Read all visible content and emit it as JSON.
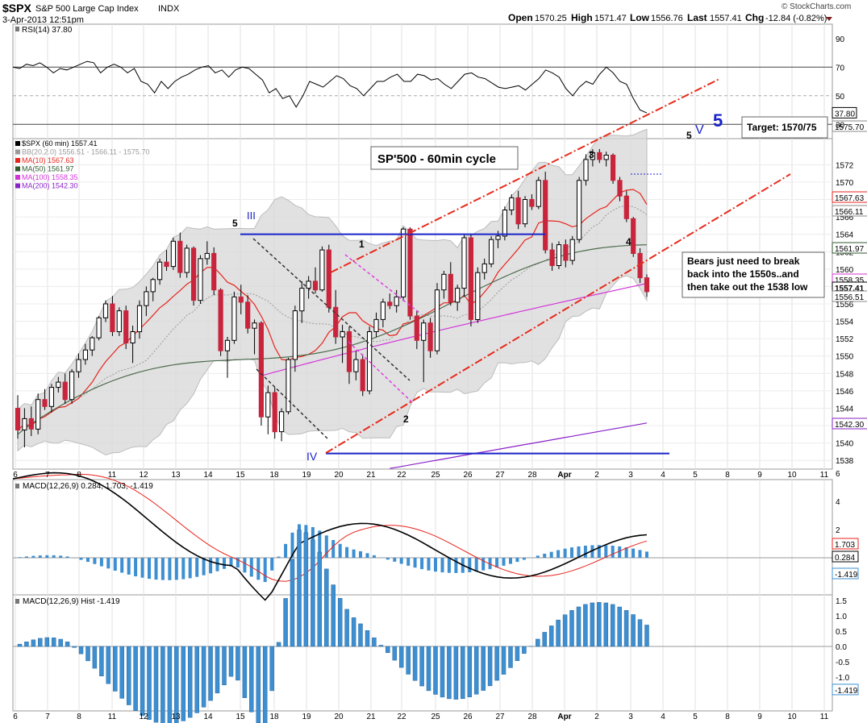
{
  "header": {
    "symbol": "$SPX",
    "name": "S&P 500 Large Cap Index",
    "exchange": "INDX",
    "datetime": "3-Apr-2013 12:51pm",
    "quote": {
      "open_label": "Open",
      "open": "1570.25",
      "high_label": "High",
      "high": "1571.47",
      "low_label": "Low",
      "low": "1556.76",
      "last_label": "Last",
      "last": "1557.41",
      "chg_label": "Chg",
      "chg": "-12.84 (-0.82%)"
    },
    "watermark": "© StockCharts.com"
  },
  "colors": {
    "up": "#ffffff",
    "down": "#c8243c",
    "candle_outline": "#000000",
    "bb": "#bcbcbc",
    "ma10": "#e8231c",
    "ma50": "#4d6b4d",
    "ma100": "#d433d9",
    "ma200": "#8a22c9",
    "channel": "#e82a1c",
    "annotation_blue": "#1a23c8",
    "macd_hist": "#3d8fd1",
    "macd_signal": "#e8231c"
  },
  "rsi_panel": {
    "label": "RSI(14) 37.80",
    "ticks": [
      "90",
      "70",
      "50",
      "30"
    ],
    "current_tag": "37.80",
    "overbought": 70,
    "oversold": 30,
    "values": [
      70,
      69,
      72,
      71,
      73,
      70,
      66,
      69,
      68,
      70,
      72,
      74,
      73,
      66,
      70,
      72,
      70,
      66,
      69,
      60,
      58,
      52,
      60,
      55,
      60,
      63,
      65,
      68,
      70,
      71,
      66,
      68,
      63,
      68,
      70,
      69,
      65,
      61,
      52,
      55,
      48,
      50,
      42,
      50,
      60,
      58,
      56,
      60,
      64,
      62,
      57,
      55,
      50,
      55,
      60,
      60,
      63,
      65,
      60,
      60,
      65,
      64,
      61,
      62,
      58,
      55,
      60,
      65,
      66,
      63,
      62,
      59,
      56,
      55,
      56,
      57,
      54,
      58,
      62,
      68,
      66,
      63,
      55,
      50,
      56,
      60,
      58,
      65,
      70,
      66,
      60,
      58,
      48,
      40,
      38
    ]
  },
  "price_panel": {
    "legend": [
      {
        "label": "$SPX (60 min) 1557.41",
        "color": "#000000"
      },
      {
        "label": "BB(20,2.0) 1556.51 - 1566.11 - 1575.70",
        "color": "#9a9a9a"
      },
      {
        "label": "MA(10) 1567.63",
        "color": "#e8231c"
      },
      {
        "label": "MA(50) 1561.97",
        "color": "#2e5a2e"
      },
      {
        "label": "MA(100) 1558.35",
        "color": "#d433d9"
      },
      {
        "label": "MA(200) 1542.30",
        "color": "#8a22c9"
      }
    ],
    "y_ticks": [
      "1572",
      "1570",
      "1568",
      "1566",
      "1564",
      "1562",
      "1560",
      "1558",
      "1556",
      "1554",
      "1552",
      "1550",
      "1548",
      "1546",
      "1544",
      "1542",
      "1540",
      "1538"
    ],
    "right_tags": [
      "1575.70",
      "1567.63",
      "1566.11",
      "1561.97",
      "1558.35",
      "1557.41",
      "1556.51",
      "1542.30"
    ],
    "x_labels": [
      "6",
      "7",
      "8",
      "11",
      "12",
      "13",
      "14",
      "15",
      "18",
      "19",
      "20",
      "21",
      "22",
      "25",
      "26",
      "27",
      "28",
      "Apr",
      "2",
      "3",
      "4",
      "5",
      "8",
      "9",
      "10",
      "11"
    ]
  },
  "annotations": {
    "title": "SP'500 - 60min cycle",
    "target": "Target: 1570/75",
    "note": "Bears just need to break back into the 1550s..and then take out the 1538 low",
    "wave_labels": [
      "5",
      "III",
      "1",
      "IV",
      "2",
      "3",
      "4",
      "5",
      "V",
      "5"
    ]
  },
  "macd_panel": {
    "label": "MACD(12,26,9) 0.284, 1.703, -1.419",
    "ticks": [
      "6",
      "4",
      "2",
      "0"
    ],
    "tags": [
      "1.703",
      "0.284",
      "-1.419"
    ]
  },
  "hist_panel": {
    "label": "MACD(12,26,9) Hist -1.419",
    "ticks": [
      "1.5",
      "1.0",
      "0.5",
      "0.0",
      "-0.5",
      "-1.0"
    ],
    "tag": "-1.419"
  },
  "chart_data": {
    "type": "candlestick",
    "title": "$SPX (60 min)",
    "interval": "60 min",
    "ylim": [
      1537,
      1575
    ],
    "x_ticks": [
      "6",
      "7",
      "8",
      "11",
      "12",
      "13",
      "14",
      "15",
      "18",
      "19",
      "20",
      "21",
      "22",
      "25",
      "26",
      "27",
      "28",
      "Apr",
      "2",
      "3",
      "4",
      "5",
      "8",
      "9",
      "10",
      "11"
    ],
    "candles": [
      [
        1544,
        1545.5,
        1540.5,
        1541.5
      ],
      [
        1541.5,
        1544,
        1539.5,
        1542.8
      ],
      [
        1542.8,
        1544.2,
        1540.8,
        1541.6
      ],
      [
        1541.6,
        1545.7,
        1541,
        1545
      ],
      [
        1545,
        1546.2,
        1543.8,
        1544.2
      ],
      [
        1544.2,
        1546.8,
        1543.5,
        1546.4
      ],
      [
        1546.4,
        1547.6,
        1545.8,
        1547
      ],
      [
        1547,
        1548,
        1544.5,
        1545
      ],
      [
        1545,
        1548.5,
        1544.5,
        1548.2
      ],
      [
        1548.2,
        1550.3,
        1547.5,
        1549.6
      ],
      [
        1549.6,
        1551.4,
        1549,
        1550.7
      ],
      [
        1550.7,
        1552.3,
        1550,
        1552.1
      ],
      [
        1552.1,
        1554.6,
        1551.8,
        1554.4
      ],
      [
        1554.4,
        1556.4,
        1553.9,
        1556
      ],
      [
        1556,
        1556.9,
        1552.3,
        1552.8
      ],
      [
        1552.8,
        1555.6,
        1552.3,
        1555.2
      ],
      [
        1555.2,
        1555.8,
        1550.8,
        1551.5
      ],
      [
        1551.5,
        1553.5,
        1549.2,
        1552.8
      ],
      [
        1552.8,
        1556.4,
        1552,
        1555.8
      ],
      [
        1555.8,
        1558,
        1554.6,
        1557.4
      ],
      [
        1557.4,
        1559,
        1556.3,
        1558.8
      ],
      [
        1558.8,
        1561.2,
        1558.2,
        1560.8
      ],
      [
        1560.8,
        1562.2,
        1559.8,
        1560.3
      ],
      [
        1560.3,
        1563.6,
        1559.9,
        1563.2
      ],
      [
        1563.2,
        1564.2,
        1559,
        1559.6
      ],
      [
        1559.6,
        1562.8,
        1559,
        1562.4
      ],
      [
        1562.4,
        1562.6,
        1555.8,
        1556.4
      ],
      [
        1556.4,
        1561.6,
        1556,
        1561.2
      ],
      [
        1561.2,
        1563.2,
        1560.5,
        1561.8
      ],
      [
        1561.8,
        1562.5,
        1557,
        1557.6
      ],
      [
        1557.6,
        1557.8,
        1550,
        1550.6
      ],
      [
        1550.6,
        1552.2,
        1547.5,
        1551.8
      ],
      [
        1551.8,
        1557.4,
        1551.4,
        1556.8
      ],
      [
        1556.8,
        1558.2,
        1554.8,
        1556.2
      ],
      [
        1556.2,
        1557,
        1552.6,
        1553.2
      ],
      [
        1553.2,
        1554.2,
        1550.2,
        1553.8
      ],
      [
        1553.8,
        1554,
        1542,
        1543
      ],
      [
        1543,
        1546.6,
        1541,
        1545.8
      ],
      [
        1545.8,
        1546.4,
        1540.5,
        1541.3
      ],
      [
        1541.3,
        1544,
        1540.2,
        1543.6
      ],
      [
        1543.6,
        1549.8,
        1543.3,
        1549.6
      ],
      [
        1549.6,
        1555.8,
        1548.2,
        1555.2
      ],
      [
        1555.2,
        1558.6,
        1553.8,
        1557.8
      ],
      [
        1557.8,
        1559.2,
        1556.6,
        1558.6
      ],
      [
        1558.6,
        1560.2,
        1557.2,
        1557.6
      ],
      [
        1557.6,
        1562.6,
        1557.4,
        1562.2
      ],
      [
        1562.2,
        1562.8,
        1555,
        1555.6
      ],
      [
        1555.6,
        1557.6,
        1551.4,
        1552.2
      ],
      [
        1552.2,
        1553.6,
        1549.2,
        1552.8
      ],
      [
        1552.8,
        1553.4,
        1546.8,
        1548.2
      ],
      [
        1548.2,
        1550.6,
        1547.2,
        1549.6
      ],
      [
        1549.6,
        1550.2,
        1545.4,
        1546
      ],
      [
        1546,
        1553.4,
        1545.6,
        1552.8
      ],
      [
        1552.8,
        1555,
        1552.2,
        1554.2
      ],
      [
        1554.2,
        1556.6,
        1553.3,
        1556.2
      ],
      [
        1556.2,
        1557.2,
        1555.4,
        1555.8
      ],
      [
        1555.8,
        1557.6,
        1555,
        1556.8
      ],
      [
        1556.8,
        1564.8,
        1556.3,
        1564.6
      ],
      [
        1564.6,
        1564.8,
        1554.2,
        1554.6
      ],
      [
        1554.6,
        1555.2,
        1550.8,
        1551.8
      ],
      [
        1551.8,
        1554.2,
        1547,
        1553.8
      ],
      [
        1553.8,
        1554.4,
        1549.8,
        1550.6
      ],
      [
        1550.6,
        1558.4,
        1550.2,
        1557.6
      ],
      [
        1557.6,
        1559.8,
        1556.6,
        1559.4
      ],
      [
        1559.4,
        1560.8,
        1555.8,
        1556.2
      ],
      [
        1556.2,
        1558.2,
        1555.2,
        1557.8
      ],
      [
        1557.8,
        1564,
        1556.8,
        1563.6
      ],
      [
        1563.6,
        1564,
        1553.4,
        1554.2
      ],
      [
        1554.2,
        1560.2,
        1553.8,
        1559.6
      ],
      [
        1559.6,
        1561.2,
        1558.8,
        1560.6
      ],
      [
        1560.6,
        1563.8,
        1560.2,
        1563.4
      ],
      [
        1563.4,
        1564.4,
        1562.4,
        1563.8
      ],
      [
        1563.8,
        1567.2,
        1563.3,
        1566.8
      ],
      [
        1566.8,
        1568.6,
        1566.2,
        1568.2
      ],
      [
        1568.2,
        1569,
        1564.6,
        1565.2
      ],
      [
        1565.2,
        1568.4,
        1564.8,
        1568
      ],
      [
        1568,
        1568.6,
        1566.8,
        1567.2
      ],
      [
        1567.2,
        1570.6,
        1566.9,
        1570.2
      ],
      [
        1570.2,
        1571.2,
        1561.8,
        1562.2
      ],
      [
        1562.2,
        1563,
        1559.8,
        1560.4
      ],
      [
        1560.4,
        1563.2,
        1560,
        1562.8
      ],
      [
        1562.8,
        1563.4,
        1560.2,
        1561
      ],
      [
        1561,
        1563.8,
        1560.5,
        1563.4
      ],
      [
        1563.4,
        1570.6,
        1563,
        1570.2
      ],
      [
        1570.2,
        1573.2,
        1569.6,
        1572.6
      ],
      [
        1572.6,
        1573.8,
        1571.8,
        1573.4
      ],
      [
        1573.4,
        1573.8,
        1572.2,
        1572.6
      ],
      [
        1572.6,
        1573.5,
        1571.8,
        1573.1
      ],
      [
        1573.1,
        1573.3,
        1569.8,
        1570.2
      ],
      [
        1570.2,
        1570.6,
        1567.8,
        1568.4
      ],
      [
        1568.4,
        1569,
        1565.4,
        1565.8
      ],
      [
        1565.8,
        1566,
        1561.4,
        1561.8
      ],
      [
        1561.8,
        1562.4,
        1558.4,
        1559
      ],
      [
        1559,
        1559.4,
        1556.8,
        1557.4
      ]
    ],
    "series": [
      {
        "name": "BB(20,2.0)",
        "values": [
          1556.51,
          1566.11,
          1575.7
        ]
      },
      {
        "name": "MA(10)",
        "values": [
          1567.63
        ]
      },
      {
        "name": "MA(50)",
        "values": [
          1561.97
        ]
      },
      {
        "name": "MA(100)",
        "values": [
          1558.35
        ]
      },
      {
        "name": "MA(200)",
        "values": [
          1542.3
        ]
      }
    ],
    "horizontal_levels": [
      1564,
      1538.8
    ]
  }
}
